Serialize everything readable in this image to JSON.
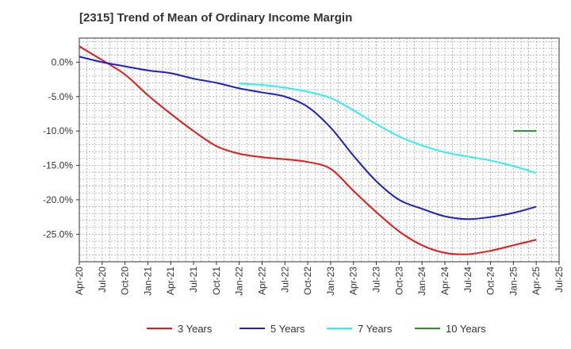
{
  "chart_data": {
    "type": "line",
    "title": "[2315]  Trend of Mean of Ordinary Income Margin",
    "xlabel": "",
    "ylabel": "",
    "x_ticks": [
      "Apr-20",
      "Jul-20",
      "Oct-20",
      "Jan-21",
      "Apr-21",
      "Jul-21",
      "Oct-21",
      "Jan-22",
      "Apr-22",
      "Jul-22",
      "Oct-22",
      "Jan-23",
      "Apr-23",
      "Jul-23",
      "Oct-23",
      "Jan-24",
      "Apr-24",
      "Jul-24",
      "Oct-24",
      "Jan-25",
      "Apr-25",
      "Jul-25"
    ],
    "y_ticks": [
      "0.0%",
      "-5.0%",
      "-10.0%",
      "-15.0%",
      "-20.0%",
      "-25.0%"
    ],
    "y_tick_values": [
      0,
      -5,
      -10,
      -15,
      -20,
      -25
    ],
    "ylim": [
      -29,
      3.5
    ],
    "grid": true,
    "legend_position": "bottom",
    "series": [
      {
        "name": "3 Years",
        "color": "#e31a1c",
        "points": [
          [
            0,
            2.3
          ],
          [
            1,
            0.3
          ],
          [
            2,
            -1.8
          ],
          [
            3,
            -4.8
          ],
          [
            4,
            -7.5
          ],
          [
            5,
            -10.0
          ],
          [
            6,
            -12.2
          ],
          [
            7,
            -13.3
          ],
          [
            8,
            -13.8
          ],
          [
            9,
            -14.1
          ],
          [
            10,
            -14.5
          ],
          [
            11,
            -15.5
          ],
          [
            12,
            -18.7
          ],
          [
            13,
            -21.8
          ],
          [
            14,
            -24.6
          ],
          [
            15,
            -26.6
          ],
          [
            16,
            -27.7
          ],
          [
            17,
            -27.9
          ],
          [
            18,
            -27.4
          ],
          [
            19,
            -26.6
          ],
          [
            20,
            -25.8
          ]
        ]
      },
      {
        "name": "5 Years",
        "color": "#1f1fc7",
        "points": [
          [
            0,
            0.8
          ],
          [
            1,
            0.0
          ],
          [
            2,
            -0.6
          ],
          [
            3,
            -1.2
          ],
          [
            4,
            -1.6
          ],
          [
            5,
            -2.4
          ],
          [
            6,
            -3.0
          ],
          [
            7,
            -3.8
          ],
          [
            8,
            -4.4
          ],
          [
            9,
            -5.0
          ],
          [
            10,
            -6.5
          ],
          [
            11,
            -9.5
          ],
          [
            12,
            -13.6
          ],
          [
            13,
            -17.3
          ],
          [
            14,
            -20.0
          ],
          [
            15,
            -21.3
          ],
          [
            16,
            -22.4
          ],
          [
            17,
            -22.8
          ],
          [
            18,
            -22.5
          ],
          [
            19,
            -21.9
          ],
          [
            20,
            -21.0
          ]
        ]
      },
      {
        "name": "7 Years",
        "color": "#33eeee",
        "points": [
          [
            7,
            -3.1
          ],
          [
            8,
            -3.3
          ],
          [
            9,
            -3.7
          ],
          [
            10,
            -4.3
          ],
          [
            11,
            -5.2
          ],
          [
            12,
            -7.0
          ],
          [
            13,
            -9.0
          ],
          [
            14,
            -10.8
          ],
          [
            15,
            -12.1
          ],
          [
            16,
            -13.1
          ],
          [
            17,
            -13.7
          ],
          [
            18,
            -14.3
          ],
          [
            19,
            -15.1
          ],
          [
            20,
            -16.1
          ]
        ]
      },
      {
        "name": "10 Years",
        "color": "#2e8b2e",
        "points": [
          [
            19,
            -10.0
          ],
          [
            20,
            -10.0
          ]
        ]
      }
    ]
  }
}
